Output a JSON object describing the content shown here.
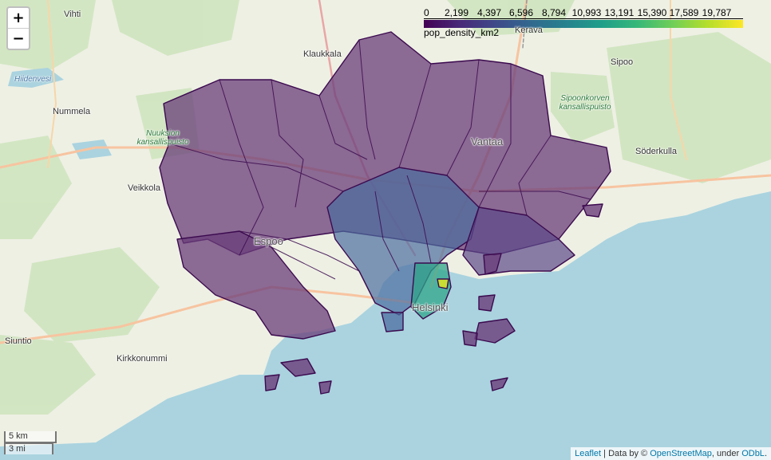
{
  "zoom": {
    "in_label": "+",
    "out_label": "−"
  },
  "legend": {
    "title": "pop_density_km2",
    "ticks": [
      "0",
      "2,199",
      "4,397",
      "6,596",
      "8,794",
      "10,993",
      "13,191",
      "15,390",
      "17,589",
      "19,787"
    ],
    "colors": [
      "#440154",
      "#482878",
      "#3e4989",
      "#31688e",
      "#26828e",
      "#1f9e89",
      "#35b779",
      "#6ece58",
      "#b5de2b",
      "#fde725"
    ]
  },
  "scale": {
    "km": "5 km",
    "mi": "3 mi"
  },
  "attribution": {
    "leaflet": "Leaflet",
    "sep1": " | Data by © ",
    "osm": "OpenStreetMap",
    "sep2": ", under ",
    "odbl": "ODbL",
    "end": "."
  },
  "places": {
    "vihti": "Vihti",
    "klaukkala": "Klaukkala",
    "kerava": "Kerava",
    "sipoo": "Sipoo",
    "hiidenvesi": "Hiidenvesi",
    "nummela": "Nummela",
    "nuuksio": "Nuuksion kansallispuisto",
    "sipoonkorpi": "Sipoonkorven kansallispuisto",
    "vantaa": "Vantaa",
    "soderkulla": "Söderkulla",
    "veikkola": "Veikkola",
    "espoo": "Espoo",
    "helsinki": "Helsinki",
    "siuntio": "Siuntio",
    "kirkkonummi": "Kirkkonummi"
  }
}
